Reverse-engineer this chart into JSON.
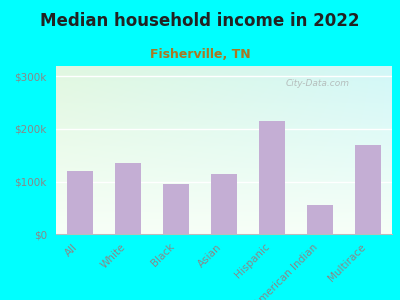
{
  "title": "Median household income in 2022",
  "subtitle": "Fisherville, TN",
  "categories": [
    "All",
    "White",
    "Black",
    "Asian",
    "Hispanic",
    "American Indian",
    "Multirace"
  ],
  "values": [
    120000,
    135000,
    95000,
    115000,
    215000,
    55000,
    170000
  ],
  "bar_color": "#c4aed4",
  "background_outer": "#00ffff",
  "title_color": "#222222",
  "subtitle_color": "#aa7722",
  "tick_label_color": "#888888",
  "ytick_labels": [
    "$0",
    "$100k",
    "$200k",
    "$300k"
  ],
  "ytick_values": [
    0,
    100000,
    200000,
    300000
  ],
  "ylim": [
    0,
    320000
  ],
  "watermark": "City-Data.com",
  "title_fontsize": 12,
  "subtitle_fontsize": 9,
  "tick_fontsize": 7.5
}
